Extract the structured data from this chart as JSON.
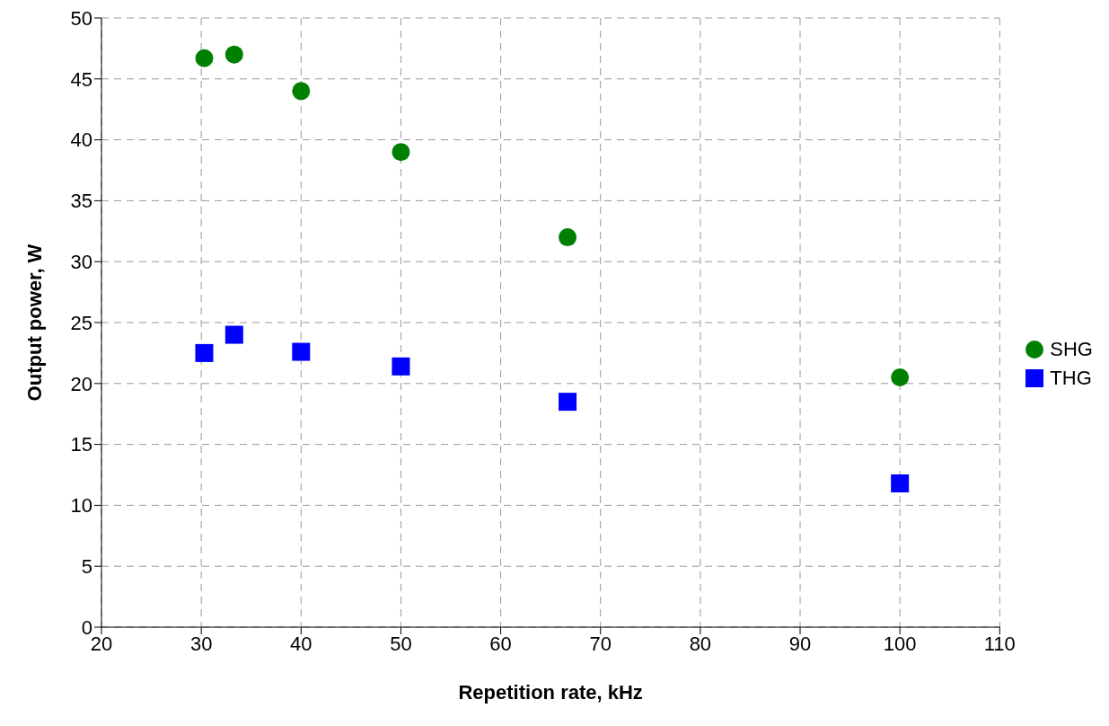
{
  "chart_data": {
    "type": "scatter",
    "xlabel": "Repetition rate, kHz",
    "ylabel": "Output power, W",
    "x": [
      30.3,
      33.3,
      40,
      50,
      66.7,
      100
    ],
    "series": [
      {
        "name": "SHG",
        "color": "#008000",
        "marker": "circle",
        "values": [
          46.7,
          47.0,
          44.0,
          39.0,
          32.0,
          20.5
        ]
      },
      {
        "name": "THG",
        "color": "#0000ff",
        "marker": "square",
        "values": [
          22.5,
          24.0,
          22.6,
          21.4,
          18.5,
          11.8
        ]
      }
    ],
    "xlim": [
      20,
      110
    ],
    "xticks": [
      20,
      30,
      40,
      50,
      60,
      70,
      80,
      90,
      100,
      110
    ],
    "ylim": [
      0,
      50
    ],
    "yticks": [
      0,
      5,
      10,
      15,
      20,
      25,
      30,
      35,
      40,
      45,
      50
    ],
    "grid": true,
    "legend": "right"
  }
}
